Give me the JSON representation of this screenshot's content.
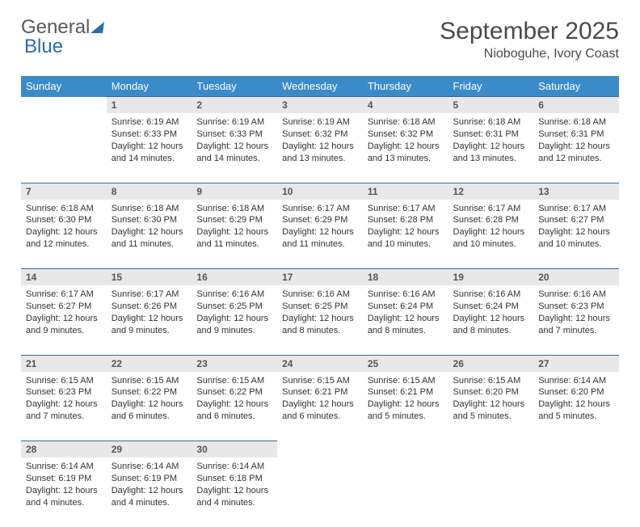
{
  "brand": {
    "general": "General",
    "blue": "Blue"
  },
  "title": "September 2025",
  "location": "Nioboguhe, Ivory Coast",
  "colors": {
    "header_bg": "#3b8bc9",
    "header_fg": "#ffffff",
    "daynum_bg": "#e8e8e8",
    "rule": "#2c6ca8",
    "text": "#333333",
    "logo_gray": "#5a5a5a",
    "logo_blue": "#2c6ca8"
  },
  "weekdays": [
    "Sunday",
    "Monday",
    "Tuesday",
    "Wednesday",
    "Thursday",
    "Friday",
    "Saturday"
  ],
  "weeks": [
    [
      null,
      {
        "n": "1",
        "sr": "Sunrise: 6:19 AM",
        "ss": "Sunset: 6:33 PM",
        "dl": "Daylight: 12 hours and 14 minutes."
      },
      {
        "n": "2",
        "sr": "Sunrise: 6:19 AM",
        "ss": "Sunset: 6:33 PM",
        "dl": "Daylight: 12 hours and 14 minutes."
      },
      {
        "n": "3",
        "sr": "Sunrise: 6:19 AM",
        "ss": "Sunset: 6:32 PM",
        "dl": "Daylight: 12 hours and 13 minutes."
      },
      {
        "n": "4",
        "sr": "Sunrise: 6:18 AM",
        "ss": "Sunset: 6:32 PM",
        "dl": "Daylight: 12 hours and 13 minutes."
      },
      {
        "n": "5",
        "sr": "Sunrise: 6:18 AM",
        "ss": "Sunset: 6:31 PM",
        "dl": "Daylight: 12 hours and 13 minutes."
      },
      {
        "n": "6",
        "sr": "Sunrise: 6:18 AM",
        "ss": "Sunset: 6:31 PM",
        "dl": "Daylight: 12 hours and 12 minutes."
      }
    ],
    [
      {
        "n": "7",
        "sr": "Sunrise: 6:18 AM",
        "ss": "Sunset: 6:30 PM",
        "dl": "Daylight: 12 hours and 12 minutes."
      },
      {
        "n": "8",
        "sr": "Sunrise: 6:18 AM",
        "ss": "Sunset: 6:30 PM",
        "dl": "Daylight: 12 hours and 11 minutes."
      },
      {
        "n": "9",
        "sr": "Sunrise: 6:18 AM",
        "ss": "Sunset: 6:29 PM",
        "dl": "Daylight: 12 hours and 11 minutes."
      },
      {
        "n": "10",
        "sr": "Sunrise: 6:17 AM",
        "ss": "Sunset: 6:29 PM",
        "dl": "Daylight: 12 hours and 11 minutes."
      },
      {
        "n": "11",
        "sr": "Sunrise: 6:17 AM",
        "ss": "Sunset: 6:28 PM",
        "dl": "Daylight: 12 hours and 10 minutes."
      },
      {
        "n": "12",
        "sr": "Sunrise: 6:17 AM",
        "ss": "Sunset: 6:28 PM",
        "dl": "Daylight: 12 hours and 10 minutes."
      },
      {
        "n": "13",
        "sr": "Sunrise: 6:17 AM",
        "ss": "Sunset: 6:27 PM",
        "dl": "Daylight: 12 hours and 10 minutes."
      }
    ],
    [
      {
        "n": "14",
        "sr": "Sunrise: 6:17 AM",
        "ss": "Sunset: 6:27 PM",
        "dl": "Daylight: 12 hours and 9 minutes."
      },
      {
        "n": "15",
        "sr": "Sunrise: 6:17 AM",
        "ss": "Sunset: 6:26 PM",
        "dl": "Daylight: 12 hours and 9 minutes."
      },
      {
        "n": "16",
        "sr": "Sunrise: 6:16 AM",
        "ss": "Sunset: 6:25 PM",
        "dl": "Daylight: 12 hours and 9 minutes."
      },
      {
        "n": "17",
        "sr": "Sunrise: 6:16 AM",
        "ss": "Sunset: 6:25 PM",
        "dl": "Daylight: 12 hours and 8 minutes."
      },
      {
        "n": "18",
        "sr": "Sunrise: 6:16 AM",
        "ss": "Sunset: 6:24 PM",
        "dl": "Daylight: 12 hours and 8 minutes."
      },
      {
        "n": "19",
        "sr": "Sunrise: 6:16 AM",
        "ss": "Sunset: 6:24 PM",
        "dl": "Daylight: 12 hours and 8 minutes."
      },
      {
        "n": "20",
        "sr": "Sunrise: 6:16 AM",
        "ss": "Sunset: 6:23 PM",
        "dl": "Daylight: 12 hours and 7 minutes."
      }
    ],
    [
      {
        "n": "21",
        "sr": "Sunrise: 6:15 AM",
        "ss": "Sunset: 6:23 PM",
        "dl": "Daylight: 12 hours and 7 minutes."
      },
      {
        "n": "22",
        "sr": "Sunrise: 6:15 AM",
        "ss": "Sunset: 6:22 PM",
        "dl": "Daylight: 12 hours and 6 minutes."
      },
      {
        "n": "23",
        "sr": "Sunrise: 6:15 AM",
        "ss": "Sunset: 6:22 PM",
        "dl": "Daylight: 12 hours and 6 minutes."
      },
      {
        "n": "24",
        "sr": "Sunrise: 6:15 AM",
        "ss": "Sunset: 6:21 PM",
        "dl": "Daylight: 12 hours and 6 minutes."
      },
      {
        "n": "25",
        "sr": "Sunrise: 6:15 AM",
        "ss": "Sunset: 6:21 PM",
        "dl": "Daylight: 12 hours and 5 minutes."
      },
      {
        "n": "26",
        "sr": "Sunrise: 6:15 AM",
        "ss": "Sunset: 6:20 PM",
        "dl": "Daylight: 12 hours and 5 minutes."
      },
      {
        "n": "27",
        "sr": "Sunrise: 6:14 AM",
        "ss": "Sunset: 6:20 PM",
        "dl": "Daylight: 12 hours and 5 minutes."
      }
    ],
    [
      {
        "n": "28",
        "sr": "Sunrise: 6:14 AM",
        "ss": "Sunset: 6:19 PM",
        "dl": "Daylight: 12 hours and 4 minutes."
      },
      {
        "n": "29",
        "sr": "Sunrise: 6:14 AM",
        "ss": "Sunset: 6:19 PM",
        "dl": "Daylight: 12 hours and 4 minutes."
      },
      {
        "n": "30",
        "sr": "Sunrise: 6:14 AM",
        "ss": "Sunset: 6:18 PM",
        "dl": "Daylight: 12 hours and 4 minutes."
      },
      null,
      null,
      null,
      null
    ]
  ]
}
